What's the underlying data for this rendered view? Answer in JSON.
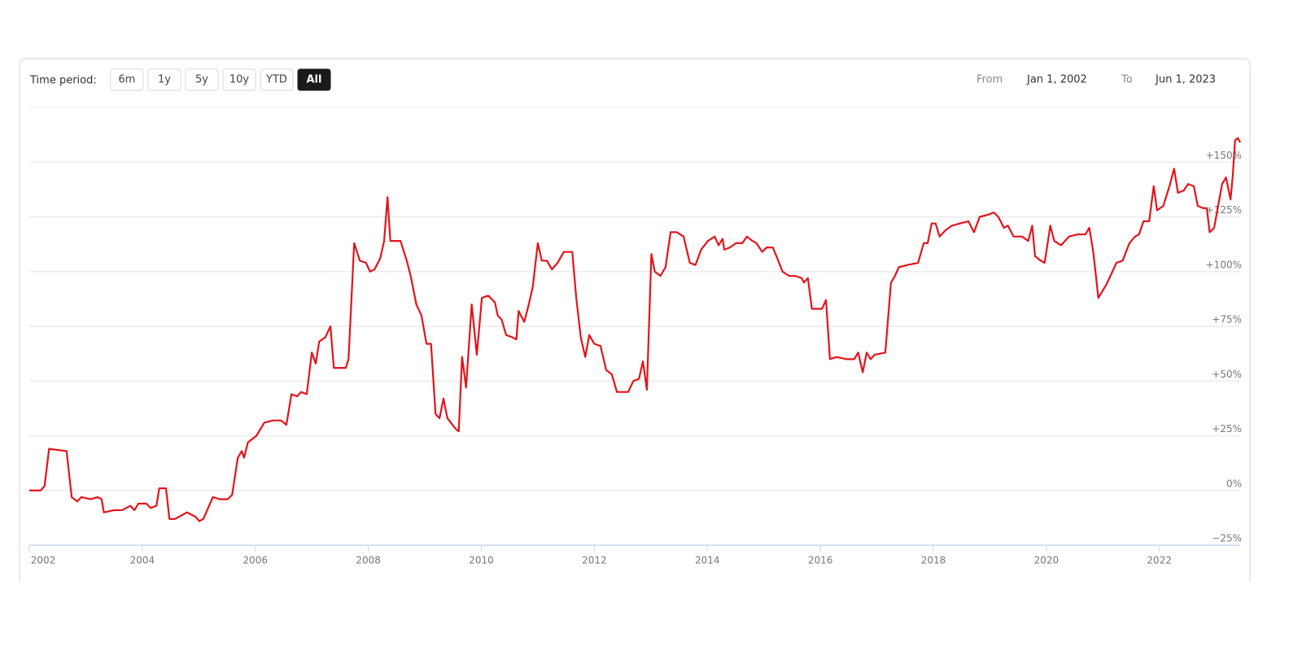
{
  "toolbar": {
    "label": "Time period:",
    "buttons": [
      "6m",
      "1y",
      "5y",
      "10y",
      "YTD",
      "All"
    ],
    "selected": 5,
    "from_label": "From",
    "from": "Jan 1, 2002",
    "to_label": "To",
    "to": "Jun 1, 2023"
  },
  "chart_data": {
    "type": "line",
    "grid": true,
    "xlim": [
      2002,
      2023.43
    ],
    "xticks": [
      2002,
      2004,
      2006,
      2008,
      2010,
      2012,
      2014,
      2016,
      2018,
      2020,
      2022
    ],
    "ylim": [
      -25,
      175
    ],
    "yticks": [
      {
        "value": -25,
        "label": "−25%"
      },
      {
        "value": 0,
        "label": "0%"
      },
      {
        "value": 25,
        "label": "+25%"
      },
      {
        "value": 50,
        "label": "+50%"
      },
      {
        "value": 75,
        "label": "+75%"
      },
      {
        "value": 100,
        "label": "+100%"
      },
      {
        "value": 125,
        "label": "+125%"
      },
      {
        "value": 150,
        "label": "+150%"
      }
    ],
    "x": [
      2002.0,
      2002.2,
      2002.27,
      2002.35,
      2002.66,
      2002.75,
      2002.85,
      2002.92,
      2003.09,
      2003.21,
      2003.28,
      2003.32,
      2003.5,
      2003.64,
      2003.79,
      2003.86,
      2003.93,
      2004.07,
      2004.15,
      2004.25,
      2004.3,
      2004.42,
      2004.48,
      2004.58,
      2004.79,
      2004.94,
      2005.01,
      2005.08,
      2005.25,
      2005.37,
      2005.51,
      2005.59,
      2005.69,
      2005.76,
      2005.8,
      2005.87,
      2006.02,
      2006.16,
      2006.31,
      2006.45,
      2006.55,
      2006.64,
      2006.74,
      2006.81,
      2006.91,
      2007.0,
      2007.07,
      2007.13,
      2007.24,
      2007.33,
      2007.39,
      2007.6,
      2007.65,
      2007.75,
      2007.85,
      2007.96,
      2008.03,
      2008.11,
      2008.21,
      2008.28,
      2008.34,
      2008.39,
      2008.57,
      2008.68,
      2008.75,
      2008.85,
      2008.94,
      2009.03,
      2009.11,
      2009.19,
      2009.26,
      2009.33,
      2009.4,
      2009.55,
      2009.6,
      2009.66,
      2009.73,
      2009.83,
      2009.92,
      2010.01,
      2010.12,
      2010.24,
      2010.29,
      2010.36,
      2010.44,
      2010.55,
      2010.62,
      2010.66,
      2010.76,
      2010.84,
      2010.91,
      2011.0,
      2011.07,
      2011.16,
      2011.25,
      2011.35,
      2011.46,
      2011.61,
      2011.68,
      2011.76,
      2011.84,
      2011.91,
      2012.0,
      2012.11,
      2012.21,
      2012.31,
      2012.4,
      2012.5,
      2012.6,
      2012.69,
      2012.79,
      2012.86,
      2012.93,
      2013.01,
      2013.07,
      2013.17,
      2013.26,
      2013.35,
      2013.46,
      2013.58,
      2013.69,
      2013.79,
      2013.89,
      2014.01,
      2014.13,
      2014.2,
      2014.27,
      2014.3,
      2014.4,
      2014.51,
      2014.62,
      2014.7,
      2014.8,
      2014.87,
      2014.97,
      2015.05,
      2015.16,
      2015.24,
      2015.33,
      2015.45,
      2015.56,
      2015.67,
      2015.71,
      2015.78,
      2015.85,
      2015.95,
      2016.03,
      2016.1,
      2016.17,
      2016.29,
      2016.46,
      2016.6,
      2016.67,
      2016.75,
      2016.82,
      2016.89,
      2016.96,
      2017.15,
      2017.25,
      2017.32,
      2017.39,
      2017.54,
      2017.73,
      2017.83,
      2017.9,
      2017.97,
      2018.04,
      2018.11,
      2018.22,
      2018.33,
      2018.47,
      2018.62,
      2018.72,
      2018.82,
      2018.97,
      2019.07,
      2019.15,
      2019.25,
      2019.32,
      2019.42,
      2019.57,
      2019.68,
      2019.75,
      2019.8,
      2019.9,
      2019.97,
      2020.07,
      2020.14,
      2020.26,
      2020.4,
      2020.55,
      2020.69,
      2020.76,
      2020.83,
      2020.92,
      2021.06,
      2021.17,
      2021.24,
      2021.35,
      2021.47,
      2021.57,
      2021.64,
      2021.72,
      2021.82,
      2021.9,
      2021.96,
      2022.07,
      2022.19,
      2022.26,
      2022.33,
      2022.43,
      2022.51,
      2022.61,
      2022.68,
      2022.77,
      2022.84,
      2022.89,
      2022.97,
      2023.04,
      2023.11,
      2023.18,
      2023.26,
      2023.3,
      2023.34,
      2023.39,
      2023.43
    ],
    "series": [
      {
        "color": "#e3141b",
        "values": [
          0,
          0,
          2,
          19,
          18,
          -3,
          -5,
          -3,
          -4,
          -3,
          -4,
          -10,
          -9,
          -9,
          -7,
          -9,
          -6,
          -6,
          -8,
          -7,
          1,
          1,
          -13,
          -13,
          -10,
          -12,
          -14,
          -13,
          -3,
          -4,
          -4,
          -2,
          15,
          18,
          15,
          22,
          25,
          31,
          32,
          32,
          30,
          44,
          43,
          45,
          44,
          63,
          58,
          68,
          70,
          75,
          56,
          56,
          60,
          113,
          105,
          104,
          100,
          101,
          106,
          114,
          134,
          114,
          114,
          105,
          98,
          85,
          80,
          67,
          67,
          35,
          33,
          42,
          33,
          28,
          27,
          61,
          47,
          85,
          62,
          88,
          89,
          86,
          80,
          78,
          71,
          70,
          69,
          82,
          77,
          85,
          93,
          113,
          105,
          105,
          101,
          104,
          109,
          109,
          88,
          70,
          61,
          71,
          67,
          66,
          55,
          53,
          45,
          45,
          45,
          50,
          51,
          59,
          46,
          108,
          100,
          98,
          102,
          118,
          118,
          116,
          104,
          103,
          110,
          114,
          116,
          112,
          115,
          110,
          111,
          113,
          113,
          116,
          114,
          113,
          109,
          111,
          111,
          106,
          100,
          98,
          98,
          97,
          95,
          97,
          83,
          83,
          83,
          87,
          60,
          61,
          60,
          60,
          63,
          54,
          63,
          60,
          62,
          63,
          95,
          98,
          102,
          103,
          104,
          113,
          113,
          122,
          122,
          116,
          119,
          121,
          122,
          123,
          118,
          125,
          126,
          127,
          125,
          120,
          121,
          116,
          116,
          114,
          121,
          107,
          105,
          104,
          121,
          114,
          112,
          116,
          117,
          117,
          120,
          109,
          88,
          94,
          100,
          104,
          105,
          113,
          116,
          117,
          123,
          123,
          139,
          128,
          130,
          140,
          147,
          136,
          137,
          140,
          139,
          130,
          129,
          129,
          118,
          120,
          130,
          140,
          143,
          133,
          144,
          160,
          161,
          159
        ]
      }
    ]
  }
}
